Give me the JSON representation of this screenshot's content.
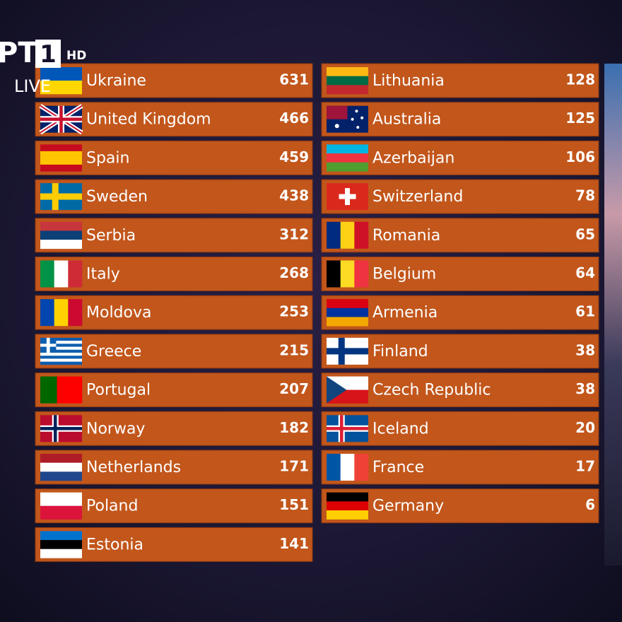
{
  "logo": {
    "channel": "PT",
    "number": "1",
    "quality": "HD",
    "status": "LIVE"
  },
  "scoreboard": {
    "left": [
      {
        "country": "Ukraine",
        "points": 631
      },
      {
        "country": "United Kingdom",
        "points": 466
      },
      {
        "country": "Spain",
        "points": 459
      },
      {
        "country": "Sweden",
        "points": 438
      },
      {
        "country": "Serbia",
        "points": 312
      },
      {
        "country": "Italy",
        "points": 268
      },
      {
        "country": "Moldova",
        "points": 253
      },
      {
        "country": "Greece",
        "points": 215
      },
      {
        "country": "Portugal",
        "points": 207
      },
      {
        "country": "Norway",
        "points": 182
      },
      {
        "country": "Netherlands",
        "points": 171
      },
      {
        "country": "Poland",
        "points": 151
      },
      {
        "country": "Estonia",
        "points": 141
      }
    ],
    "right": [
      {
        "country": "Lithuania",
        "points": 128
      },
      {
        "country": "Australia",
        "points": 125
      },
      {
        "country": "Azerbaijan",
        "points": 106
      },
      {
        "country": "Switzerland",
        "points": 78
      },
      {
        "country": "Romania",
        "points": 65
      },
      {
        "country": "Belgium",
        "points": 64
      },
      {
        "country": "Armenia",
        "points": 61
      },
      {
        "country": "Finland",
        "points": 38
      },
      {
        "country": "Czech Republic",
        "points": 38
      },
      {
        "country": "Iceland",
        "points": 20
      },
      {
        "country": "France",
        "points": 17
      },
      {
        "country": "Germany",
        "points": 6
      }
    ]
  }
}
